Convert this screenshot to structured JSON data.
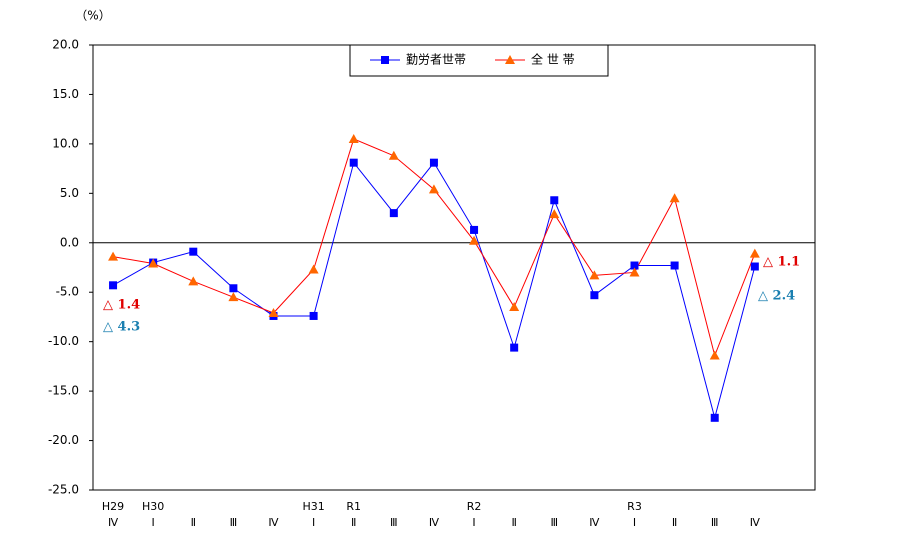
{
  "chart_data": {
    "type": "line",
    "y_unit": "（%）",
    "categories": [
      "Ⅳ",
      "Ⅰ",
      "Ⅱ",
      "Ⅲ",
      "Ⅳ",
      "Ⅰ",
      "Ⅱ",
      "Ⅲ",
      "Ⅳ",
      "Ⅰ",
      "Ⅱ",
      "Ⅲ",
      "Ⅳ",
      "Ⅰ",
      "Ⅱ",
      "Ⅲ",
      "Ⅳ"
    ],
    "category_years": [
      "H29",
      "H30",
      null,
      null,
      null,
      "H31",
      "R1",
      null,
      null,
      "R2",
      null,
      null,
      null,
      "R3",
      null,
      null,
      null
    ],
    "series": [
      {
        "name": "勤労者世帯",
        "color": "#0000ff",
        "marker": "square",
        "values": [
          -4.3,
          -2.0,
          -0.9,
          -4.6,
          -7.4,
          -7.4,
          8.1,
          3.0,
          8.1,
          1.3,
          -10.6,
          4.3,
          -5.3,
          -2.3,
          -2.3,
          -17.7,
          -2.4
        ]
      },
      {
        "name": "全 世 帯",
        "color": "#ff0000",
        "marker_color": "#ff6600",
        "marker": "triangle",
        "values": [
          -1.4,
          -2.1,
          -3.9,
          -5.5,
          -7.1,
          -2.7,
          10.5,
          8.8,
          5.4,
          0.2,
          -6.5,
          2.9,
          -3.3,
          -3.0,
          4.5,
          -11.4,
          -1.1
        ]
      }
    ],
    "annotations": [
      {
        "text": "△ 1.4",
        "color": "#e00000"
      },
      {
        "text": "△ 4.3",
        "color": "#1a7fb0"
      },
      {
        "text": "△ 1.1",
        "color": "#e00000"
      },
      {
        "text": "△ 2.4",
        "color": "#1a7fb0"
      }
    ],
    "ylim": [
      -25,
      20
    ],
    "yticks": [
      {
        "value": -25,
        "label": "-25.0"
      },
      {
        "value": -20,
        "label": "-20.0"
      },
      {
        "value": -15,
        "label": "-15.0"
      },
      {
        "value": -10,
        "label": "-10.0"
      },
      {
        "value": -5,
        "label": "-5.0"
      },
      {
        "value": 0,
        "label": "0.0"
      },
      {
        "value": 5,
        "label": "5.0"
      },
      {
        "value": 10,
        "label": "10.0"
      },
      {
        "value": 15,
        "label": "15.0"
      },
      {
        "value": 20,
        "label": "20.0"
      }
    ]
  }
}
